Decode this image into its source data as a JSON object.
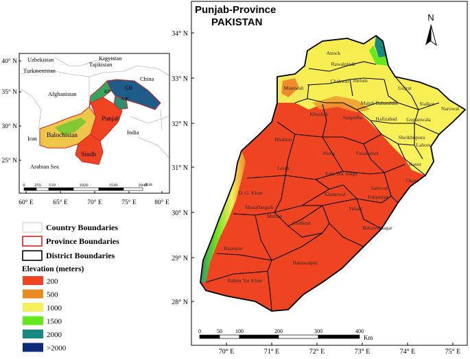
{
  "main_map": {
    "title_line1": "Punjab-Province",
    "title_line2": "PAKISTAN",
    "north_label": "N",
    "lat_labels": [
      "34° N",
      "33° N",
      "32° N",
      "31° N",
      "30° N",
      "29° N",
      "28° N"
    ],
    "lon_labels": [
      "70° E",
      "71° E",
      "72° E",
      "73° E",
      "74° E",
      "75° E"
    ],
    "scale_ticks": [
      "0",
      "50",
      "100",
      "200",
      "300",
      "400"
    ],
    "scale_unit": "Km",
    "districts": [
      "Attock",
      "Rawalpindi",
      "Chakwal",
      "Jhelum",
      "Gujrat",
      "Mianwali",
      "Mandi Bahauddin",
      "Sialkot",
      "Narowal",
      "Khushab",
      "Sargodha",
      "Hafizabad",
      "Gujranwala",
      "Sheikhupura",
      "Lahore",
      "Bhakkar",
      "Jhang",
      "Faisalabad",
      "Kasur",
      "Leiah",
      "Toba Tek Singh",
      "Okara",
      "D. G. Khan",
      "Khanewal",
      "Sahiwal",
      "Pakpattan",
      "Muzaffargarh",
      "Multan",
      "Vehari",
      "Lodhran",
      "Bahawalnagar",
      "Rajanpur",
      "Bahawalpur",
      "Rahim Yar Khan"
    ]
  },
  "inset_map": {
    "countries": [
      "Uzbekistan",
      "Krgyistan",
      "Tajikistan",
      "Turkmenistan",
      "China",
      "Afghanistan",
      "Iran",
      "India",
      "Arabian Sea"
    ],
    "provinces": [
      "GB",
      "KP",
      "AJK",
      "Punjab",
      "Balochistan",
      "Sindh"
    ],
    "lat_labels": [
      "40° N",
      "35° N",
      "30° N",
      "25° N"
    ],
    "lon_labels": [
      "60° E",
      "65° E",
      "70° E",
      "75° E",
      "80° E"
    ],
    "scale_ticks": [
      "0",
      "255",
      "510",
      "1020",
      "1530",
      "2040"
    ],
    "scale_unit": "Km"
  },
  "legend": {
    "boundaries": [
      {
        "label": "Country Boundaries",
        "stroke": "#c8c8c8"
      },
      {
        "label": "Province Boundaries",
        "stroke": "#d62020"
      },
      {
        "label": "District Boundaries",
        "stroke": "#000000"
      }
    ],
    "elevation_title": "Elevation (meters)",
    "elevation": [
      {
        "label": "200",
        "color": "#ee4422"
      },
      {
        "label": "500",
        "color": "#ea8a22"
      },
      {
        "label": "1000",
        "color": "#f8f05a"
      },
      {
        "label": "1500",
        "color": "#66e81e"
      },
      {
        "label": "2000",
        "color": "#178a80"
      },
      {
        "label": ">2000",
        "color": "#0e2a7a"
      }
    ]
  }
}
